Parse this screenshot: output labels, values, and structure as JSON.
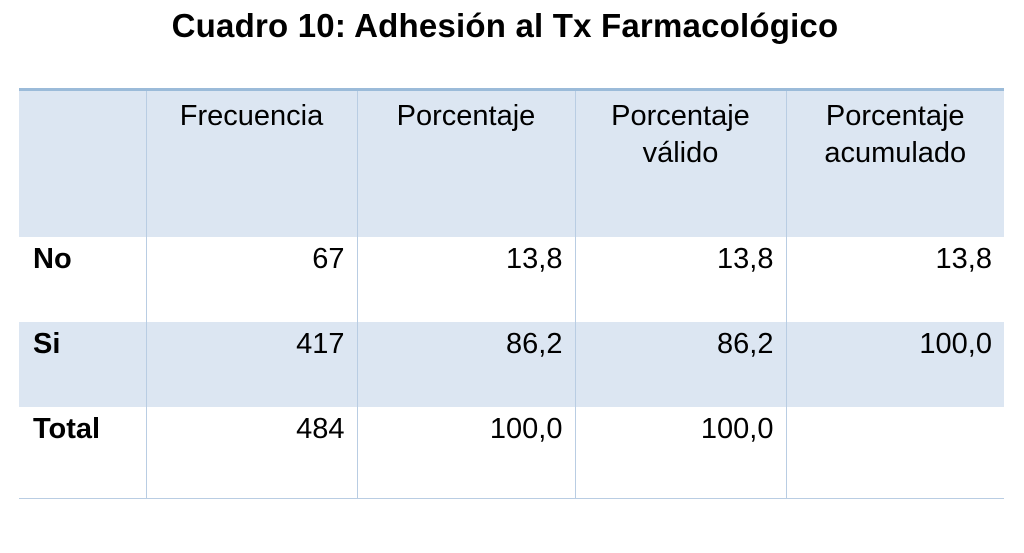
{
  "title": "Cuadro 10: Adhesión al Tx Farmacológico",
  "table": {
    "headers": [
      "",
      "Frecuencia",
      "Porcentaje",
      "Porcentaje\nválido",
      "Porcentaje\nacumulado"
    ],
    "header_lines": {
      "col1": [
        "Frecuencia"
      ],
      "col2": [
        "Porcentaje"
      ],
      "col3": [
        "Porcentaje",
        "válido"
      ],
      "col4": [
        "Porcentaje",
        "acumulado"
      ]
    },
    "rows": [
      {
        "label": "No",
        "frecuencia": "67",
        "porcentaje": "13,8",
        "porcentaje_valido": "13,8",
        "porcentaje_acumulado": "13,8"
      },
      {
        "label": "Si",
        "frecuencia": "417",
        "porcentaje": "86,2",
        "porcentaje_valido": "86,2",
        "porcentaje_acumulado": "100,0"
      },
      {
        "label": "Total",
        "frecuencia": "484",
        "porcentaje": "100,0",
        "porcentaje_valido": "100,0",
        "porcentaje_acumulado": ""
      }
    ]
  },
  "colors": {
    "header_fill": "#dce6f2",
    "band_fill": "#dce6f2",
    "top_rule": "#9bbbd9",
    "grid": "#b9cde3"
  }
}
